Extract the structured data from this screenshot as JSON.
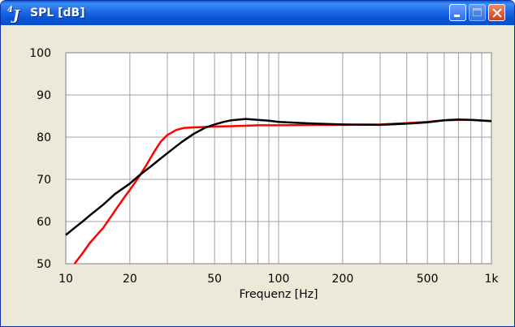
{
  "window": {
    "icon_label": "4J",
    "title": "SPL [dB]",
    "colors": {
      "titlebar": "#1e68e6",
      "client": "#ece9d8",
      "plot_bg": "#ffffff",
      "grid": "#a0a0a0"
    },
    "buttons": {
      "minimize": "minimize-icon",
      "maximize": "maximize-icon",
      "close": "close-icon"
    }
  },
  "chart_data": {
    "type": "line",
    "title": "SPL [dB]",
    "xlabel": "Frequenz [Hz]",
    "ylabel": "",
    "xscale": "log",
    "xlim": [
      10,
      1000
    ],
    "ylim": [
      50,
      100
    ],
    "grid": true,
    "legend": "none",
    "x_ticks": [
      {
        "value": 10,
        "label": "10"
      },
      {
        "value": 20,
        "label": "20"
      },
      {
        "value": 50,
        "label": "50"
      },
      {
        "value": 100,
        "label": "100"
      },
      {
        "value": 200,
        "label": "200"
      },
      {
        "value": 500,
        "label": "500"
      },
      {
        "value": 1000,
        "label": "1k"
      }
    ],
    "y_ticks": [
      {
        "value": 50,
        "label": "50"
      },
      {
        "value": 60,
        "label": "60"
      },
      {
        "value": 70,
        "label": "70"
      },
      {
        "value": 80,
        "label": "80"
      },
      {
        "value": 90,
        "label": "90"
      },
      {
        "value": 100,
        "label": "100"
      }
    ],
    "series": [
      {
        "color": "#ff0000",
        "x": [
          11,
          12,
          13,
          15,
          17,
          19,
          20,
          22,
          24,
          26,
          28,
          30,
          33,
          36,
          40,
          50,
          60,
          70,
          80,
          100,
          150,
          200,
          300,
          400,
          500,
          600,
          700,
          800,
          1000
        ],
        "y": [
          50,
          52.5,
          55,
          58.5,
          62.5,
          66,
          67.5,
          70.5,
          73.5,
          76.5,
          79,
          80.5,
          81.7,
          82.2,
          82.3,
          82.5,
          82.6,
          82.7,
          82.8,
          82.8,
          82.9,
          82.9,
          83,
          83.3,
          83.6,
          84,
          84.1,
          84.1,
          83.8
        ]
      },
      {
        "color": "#000000",
        "x": [
          10,
          11,
          12,
          13,
          15,
          17,
          20,
          22,
          25,
          28,
          30,
          35,
          40,
          45,
          50,
          55,
          60,
          70,
          80,
          90,
          100,
          150,
          200,
          300,
          400,
          500,
          600,
          700,
          800,
          1000
        ],
        "y": [
          56.8,
          58.5,
          60,
          61.5,
          64,
          66.5,
          69,
          70.8,
          73,
          75,
          76.2,
          78.8,
          80.8,
          82.2,
          83,
          83.6,
          84,
          84.3,
          84.1,
          83.9,
          83.6,
          83.2,
          83,
          82.9,
          83.2,
          83.5,
          84,
          84.2,
          84.1,
          83.8
        ]
      }
    ]
  }
}
